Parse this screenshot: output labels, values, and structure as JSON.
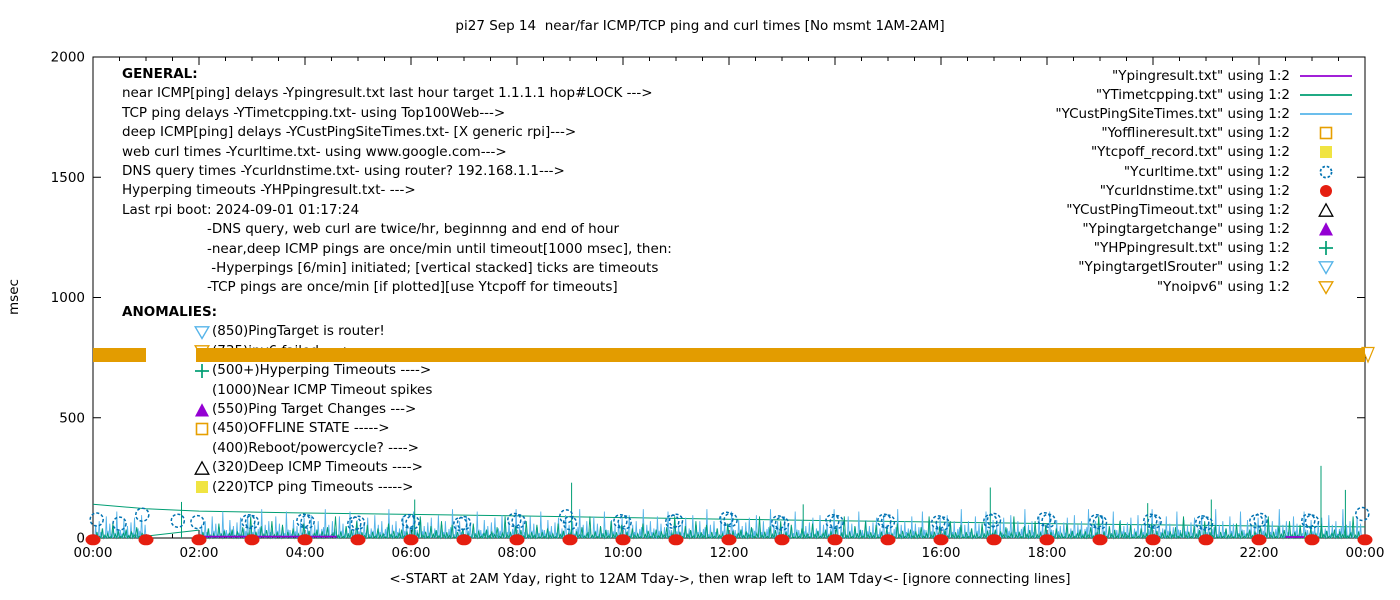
{
  "title": "pi27 Sep 14  near/far ICMP/TCP ping and curl times [No msmt 1AM-2AM]",
  "ylabel": "msec",
  "caption": "<-START at 2AM Yday, right to 12AM Tday->, then wrap left to 1AM Tday<- [ignore connecting lines]",
  "axes": {
    "y_tick_values": [
      0,
      500,
      1000,
      1500,
      2000
    ],
    "y_tick_labels": [
      "0",
      "500",
      "1000",
      "1500",
      "2000"
    ],
    "x_tick_labels": [
      "00:00",
      "02:00",
      "04:00",
      "06:00",
      "08:00",
      "10:00",
      "12:00",
      "14:00",
      "16:00",
      "18:00",
      "20:00",
      "22:00",
      "00:00"
    ],
    "x_hours_span": 24,
    "ylim": [
      0,
      2000
    ]
  },
  "colors": {
    "purple": "#9400d3",
    "seagreen": "#009e73",
    "skyblue": "#56b4e9",
    "orange": "#e69f00",
    "yellow": "#f0e442",
    "blue": "#0072b2",
    "red": "#e51e10",
    "black": "#000000",
    "band": "#e39c00"
  },
  "general": {
    "heading": "GENERAL:",
    "lines": [
      "near ICMP[ping] delays -Ypingresult.txt last hour target 1.1.1.1 hop#LOCK --->",
      "TCP ping delays -YTimetcpping.txt- using Top100Web--->",
      "deep ICMP[ping] delays -YCustPingSiteTimes.txt- [X generic rpi]--->",
      "web curl times -Ycurltime.txt- using www.google.com--->",
      "DNS query times -Ycurldnstime.txt- using router? 192.168.1.1--->",
      "Hyperping timeouts -YHPpingresult.txt- --->",
      "Last rpi boot: 2024-09-01 01:17:24"
    ],
    "indented_lines": [
      "-DNS query, web curl are twice/hr, beginnng and end of hour",
      "-near,deep ICMP pings are once/min until timeout[1000 msec], then:",
      " -Hyperpings [6/min] initiated; [vertical stacked] ticks are timeouts",
      "-TCP pings are once/min [if plotted][use Ytcpoff for timeouts]"
    ]
  },
  "anomalies": {
    "heading": "ANOMALIES:",
    "items": [
      {
        "marker": "triangle-down-open",
        "color": "#56b4e9",
        "text": "(850)PingTarget is router!"
      },
      {
        "marker": "triangle-down-open",
        "color": "#e69f00",
        "text": "(735)ipv6 failed ---->"
      },
      {
        "marker": "plus",
        "color": "#009e73",
        "text": "(500+)Hyperping Timeouts ---->"
      },
      {
        "marker": "none",
        "color": "#000000",
        "text": "(1000)Near ICMP Timeout spikes"
      },
      {
        "marker": "triangle-filled",
        "color": "#9400d3",
        "text": "(550)Ping Target Changes --->"
      },
      {
        "marker": "square-open",
        "color": "#e69f00",
        "text": "(450)OFFLINE STATE ----->"
      },
      {
        "marker": "none",
        "color": "#000000",
        "text": "(400)Reboot/powercycle? ---->"
      },
      {
        "marker": "triangle-open",
        "color": "#000000",
        "text": "(320)Deep ICMP Timeouts ---->"
      },
      {
        "marker": "square-filled",
        "color": "#f0e442",
        "text": "(220)TCP ping Timeouts ----->"
      }
    ]
  },
  "legend": {
    "items": [
      {
        "label": "\"Ypingresult.txt\" using 1:2",
        "marker": "line",
        "color": "#9400d3"
      },
      {
        "label": "\"YTimetcpping.txt\" using 1:2",
        "marker": "line",
        "color": "#009e73"
      },
      {
        "label": "\"YCustPingSiteTimes.txt\" using 1:2",
        "marker": "line",
        "color": "#56b4e9"
      },
      {
        "label": "\"Yofflineresult.txt\" using 1:2",
        "marker": "square-open",
        "color": "#e69f00"
      },
      {
        "label": "\"Ytcpoff_record.txt\" using 1:2",
        "marker": "square-filled",
        "color": "#f0e442"
      },
      {
        "label": "\"Ycurltime.txt\" using 1:2",
        "marker": "circle-open",
        "color": "#0072b2"
      },
      {
        "label": "\"Ycurldnstime.txt\" using 1:2",
        "marker": "circle-filled",
        "color": "#e51e10"
      },
      {
        "label": "\"YCustPingTimeout.txt\" using 1:2",
        "marker": "triangle-open",
        "color": "#000000"
      },
      {
        "label": "\"Ypingtargetchange\" using 1:2",
        "marker": "triangle-filled",
        "color": "#9400d3"
      },
      {
        "label": "\"YHPpingresult.txt\" using 1:2",
        "marker": "plus",
        "color": "#009e73"
      },
      {
        "label": "\"YpingtargetISrouter\" using 1:2",
        "marker": "triangle-down-open",
        "color": "#56b4e9"
      },
      {
        "label": "\"Ynoipv6\" using 1:2",
        "marker": "triangle-down-open",
        "color": "#e69f00"
      }
    ]
  },
  "chart_data": {
    "type": "line",
    "title": "pi27 Sep 14  near/far ICMP/TCP ping and curl times [No msmt 1AM-2AM]",
    "xlabel": "<-START at 2AM Yday, right to 12AM Tday->, then wrap left to 1AM Tday<- [ignore connecting lines]",
    "ylabel": "msec",
    "ylim": [
      0,
      2000
    ],
    "x_axis": "time of day 00:00 to 00:00 (24 h), major ticks every 2 h",
    "no_measurement_gap_hours": [
      1,
      2
    ],
    "legend_position": "top-right",
    "grid": false,
    "series": [
      {
        "name": "Ypingresult.txt",
        "color": "#9400d3",
        "style": "line",
        "segments": [
          [
            [
              2.05,
              6
            ],
            [
              4.6,
              6
            ]
          ],
          [
            [
              22.5,
              4
            ],
            [
              22.85,
              4
            ]
          ]
        ]
      },
      {
        "name": "YTimetcpping.txt",
        "color": "#009e73",
        "style": "noisy-line",
        "trend": [
          [
            0,
            140
          ],
          [
            1,
            122
          ],
          [
            2,
            112
          ],
          [
            4,
            104
          ],
          [
            6,
            98
          ],
          [
            8,
            92
          ],
          [
            10,
            85
          ],
          [
            12,
            78
          ],
          [
            14,
            72
          ],
          [
            16,
            66
          ],
          [
            18,
            60
          ],
          [
            20,
            55
          ],
          [
            22,
            50
          ],
          [
            24,
            46
          ]
        ],
        "gap_connect": [
          [
            1,
            8
          ],
          [
            2,
            33
          ]
        ],
        "noise_pattern_msec": [
          5,
          25,
          8,
          40,
          12,
          18,
          6,
          60,
          15,
          30,
          8,
          22,
          35,
          10,
          28,
          14,
          45,
          8,
          20,
          90,
          12,
          26,
          7,
          50,
          16,
          33,
          9,
          70,
          14,
          24,
          11,
          55
        ],
        "noise_segments_hours": [
          [
            0,
            1
          ],
          [
            2,
            24
          ]
        ],
        "spikes": [
          [
            1.67,
            150
          ],
          [
            6.07,
            160
          ],
          [
            9.03,
            230
          ],
          [
            13.4,
            140
          ],
          [
            16.93,
            210
          ],
          [
            19.9,
            145
          ],
          [
            21.1,
            160
          ],
          [
            23.17,
            300
          ],
          [
            23.63,
            200
          ]
        ]
      },
      {
        "name": "YCustPingSiteTimes.txt",
        "color": "#56b4e9",
        "style": "noisy-spikes",
        "noise_pattern_msec": [
          15,
          55,
          10,
          70,
          25,
          40,
          8,
          90,
          30,
          60,
          12,
          45,
          20,
          110,
          35,
          33,
          18,
          75,
          28,
          50,
          10,
          65,
          22,
          85,
          15,
          40,
          30,
          95,
          12,
          55,
          25,
          70,
          18,
          38,
          45,
          120
        ],
        "noise_segments_hours": [
          [
            0,
            1
          ],
          [
            2,
            24
          ]
        ]
      },
      {
        "name": "Ycurltime.txt",
        "color": "#0072b2",
        "style": "open-circles",
        "points": [
          [
            0.07,
            77
          ],
          [
            0.5,
            60
          ],
          [
            0.93,
            97
          ],
          [
            1.6,
            72
          ],
          [
            1.97,
            66
          ],
          [
            2.93,
            70
          ],
          [
            3.0,
            66
          ],
          [
            3.97,
            72
          ],
          [
            4.05,
            68
          ],
          [
            4.93,
            60
          ],
          [
            5.0,
            63
          ],
          [
            5.95,
            70
          ],
          [
            6.03,
            65
          ],
          [
            6.93,
            58
          ],
          [
            7.0,
            62
          ],
          [
            7.95,
            75
          ],
          [
            8.03,
            70
          ],
          [
            8.93,
            90
          ],
          [
            9.0,
            62
          ],
          [
            9.95,
            70
          ],
          [
            10.03,
            65
          ],
          [
            10.93,
            68
          ],
          [
            11.0,
            72
          ],
          [
            11.95,
            80
          ],
          [
            12.03,
            75
          ],
          [
            12.93,
            65
          ],
          [
            13.0,
            60
          ],
          [
            13.95,
            70
          ],
          [
            14.03,
            66
          ],
          [
            14.93,
            72
          ],
          [
            15.0,
            68
          ],
          [
            15.95,
            65
          ],
          [
            16.03,
            60
          ],
          [
            16.93,
            70
          ],
          [
            17.0,
            75
          ],
          [
            17.95,
            78
          ],
          [
            18.03,
            72
          ],
          [
            18.93,
            70
          ],
          [
            19.0,
            65
          ],
          [
            19.95,
            72
          ],
          [
            20.03,
            68
          ],
          [
            20.93,
            65
          ],
          [
            21.0,
            60
          ],
          [
            21.95,
            70
          ],
          [
            22.03,
            75
          ],
          [
            22.93,
            72
          ],
          [
            23.0,
            68
          ],
          [
            23.95,
            100
          ]
        ]
      },
      {
        "name": "Ycurldnstime.txt",
        "color": "#e51e10",
        "style": "filled-circles",
        "hours": [
          0,
          1,
          2,
          3,
          4,
          5,
          6,
          7,
          8,
          9,
          10,
          11,
          12,
          13,
          14,
          15,
          16,
          17,
          18,
          19,
          20,
          21,
          22,
          23,
          24
        ],
        "value_msec": 5
      },
      {
        "name": "Ynoipv6",
        "color": "#e69f00",
        "style": "band-of-down-triangles",
        "value_range_msec": [
          732,
          792
        ],
        "segments_hours": [
          [
            0,
            1.0
          ],
          [
            1.95,
            24.05
          ]
        ]
      }
    ]
  }
}
